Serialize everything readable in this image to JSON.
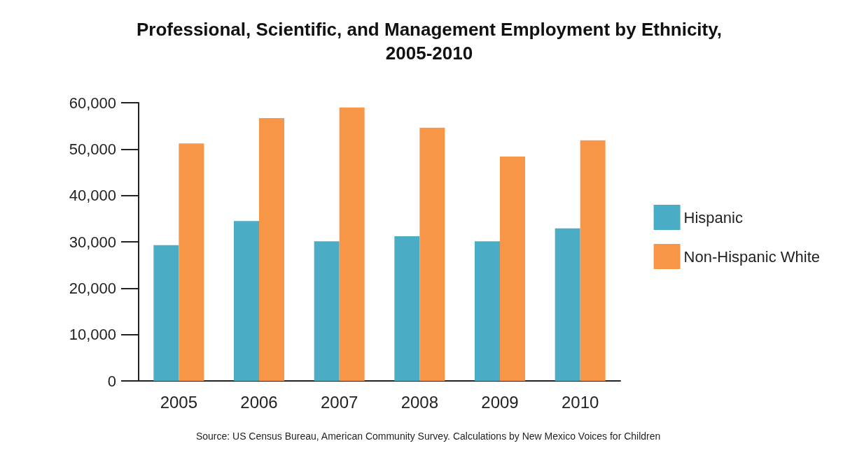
{
  "chart_data": {
    "type": "bar",
    "title": "Professional, Scientific, and Management Employment by Ethnicity,\n2005-2010",
    "categories": [
      "2005",
      "2006",
      "2007",
      "2008",
      "2009",
      "2010"
    ],
    "series": [
      {
        "name": "Hispanic",
        "color": "#4aacc5",
        "values": [
          29300,
          34500,
          30100,
          31200,
          30100,
          32900
        ]
      },
      {
        "name": "Non-Hispanic White",
        "color": "#f79646",
        "values": [
          51200,
          56700,
          59000,
          54600,
          48400,
          51900
        ]
      }
    ],
    "ylim": [
      0,
      60000
    ],
    "yticks": [
      {
        "value": 0,
        "label": "0"
      },
      {
        "value": 10000,
        "label": "10,000"
      },
      {
        "value": 20000,
        "label": "20,000"
      },
      {
        "value": 30000,
        "label": "30,000"
      },
      {
        "value": 40000,
        "label": "40,000"
      },
      {
        "value": 50000,
        "label": "50,000"
      },
      {
        "value": 60000,
        "label": "60,000"
      }
    ],
    "grid": false,
    "legend": "right",
    "annotations": [
      "Source: US Census Bureau, American Community Survey. Calculations by New Mexico Voices for Children"
    ]
  }
}
